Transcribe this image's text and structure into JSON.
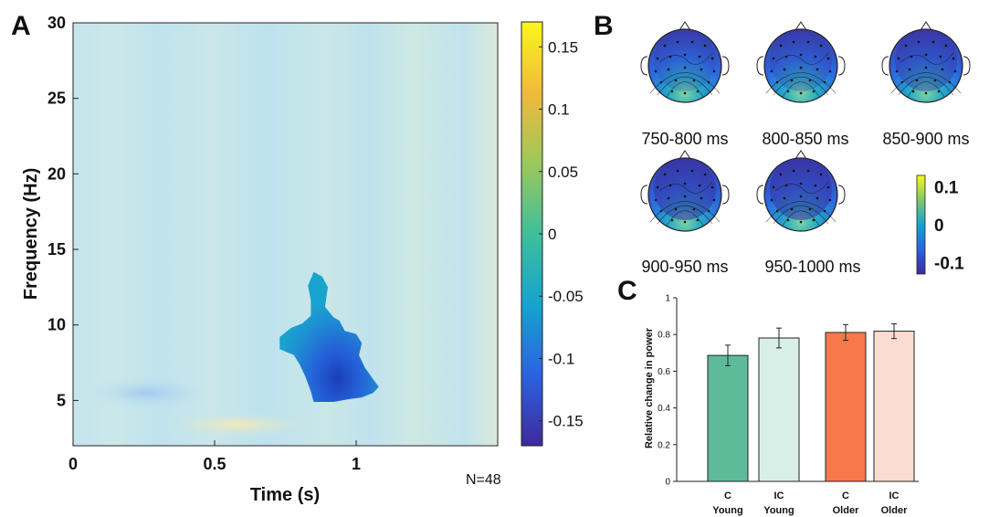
{
  "figure": {
    "panel_a_letter": "A",
    "panel_b_letter": "B",
    "panel_c_letter": "C"
  },
  "chart_data": [
    {
      "panel": "A",
      "type": "heatmap",
      "xlabel": "Time (s)",
      "ylabel": "Frequency (Hz)",
      "xlim": [
        0,
        1.5
      ],
      "ylim": [
        2,
        30
      ],
      "x_ticks": [
        0,
        0.5,
        1
      ],
      "x_tick_labels": [
        "0",
        "0.5",
        "1"
      ],
      "y_ticks": [
        5,
        10,
        15,
        20,
        25,
        30
      ],
      "y_tick_labels": [
        "5",
        "10",
        "15",
        "20",
        "25",
        "30"
      ],
      "annotation": "N=48",
      "colorbar": {
        "range": [
          -0.17,
          0.17
        ],
        "ticks": [
          0.15,
          0.1,
          0.05,
          0,
          -0.05,
          -0.1,
          -0.15
        ],
        "tick_labels": [
          "0.15",
          "0.1",
          "0.05",
          "0",
          "-0.05",
          "-0.1",
          "-0.15"
        ],
        "colors": [
          "#3e2a9c",
          "#2c63e0",
          "#15a3cf",
          "#3fbf9a",
          "#9dc85a",
          "#f0b93c",
          "#f9f71a"
        ]
      },
      "background_value": -0.03,
      "significant_cluster": {
        "time_range": [
          0.73,
          1.08
        ],
        "freq_range": [
          5,
          13.5
        ],
        "peak": {
          "time": 0.93,
          "freq": 6.3,
          "value": -0.16
        },
        "outline": [
          [
            0.85,
            13.5
          ],
          [
            0.88,
            13.2
          ],
          [
            0.9,
            12.5
          ],
          [
            0.89,
            11.2
          ],
          [
            0.92,
            10.5
          ],
          [
            0.94,
            10.3
          ],
          [
            0.96,
            9.6
          ],
          [
            1.0,
            9.4
          ],
          [
            1.02,
            8.8
          ],
          [
            1.01,
            8.0
          ],
          [
            1.03,
            7.2
          ],
          [
            1.06,
            6.4
          ],
          [
            1.08,
            5.9
          ],
          [
            1.06,
            5.5
          ],
          [
            1.02,
            5.2
          ],
          [
            0.98,
            5.1
          ],
          [
            0.92,
            4.9
          ],
          [
            0.85,
            4.9
          ],
          [
            0.84,
            5.6
          ],
          [
            0.82,
            6.6
          ],
          [
            0.8,
            7.4
          ],
          [
            0.78,
            8.0
          ],
          [
            0.73,
            8.4
          ],
          [
            0.73,
            9.2
          ],
          [
            0.77,
            9.8
          ],
          [
            0.81,
            10.1
          ],
          [
            0.84,
            10.6
          ],
          [
            0.84,
            11.6
          ],
          [
            0.83,
            12.6
          ]
        ]
      }
    },
    {
      "panel": "B",
      "type": "heatmap",
      "maps": [
        {
          "label": "750-800 ms",
          "mean": -0.07
        },
        {
          "label": "800-850 ms",
          "mean": -0.08
        },
        {
          "label": "850-900 ms",
          "mean": -0.1
        },
        {
          "label": "900-950 ms",
          "mean": -0.12
        },
        {
          "label": "950-1000 ms",
          "mean": -0.12
        }
      ],
      "colorbar": {
        "ticks": [
          0.1,
          0,
          -0.1
        ],
        "tick_labels": [
          "0.1",
          "0",
          "-0.1"
        ],
        "range": [
          -0.13,
          0.13
        ]
      }
    },
    {
      "panel": "C",
      "type": "bar",
      "ylabel": "Relative change in power",
      "ylim": [
        0,
        1
      ],
      "y_ticks": [
        0,
        0.2,
        0.4,
        0.6,
        0.8,
        1
      ],
      "y_tick_labels": [
        "0",
        "0.2",
        "0.4",
        "0.6",
        "0.8",
        "1"
      ],
      "categories": [
        {
          "line1": "C",
          "line2": "Young"
        },
        {
          "line1": "IC",
          "line2": "Young"
        },
        {
          "line1": "C",
          "line2": "Older"
        },
        {
          "line1": "IC",
          "line2": "Older"
        }
      ],
      "values": [
        0.686,
        0.781,
        0.811,
        0.818
      ],
      "errors": [
        0.056,
        0.054,
        0.043,
        0.04
      ],
      "colors": [
        "#5dbb9a",
        "#d8efe7",
        "#f7784a",
        "#fcdcd2"
      ]
    }
  ]
}
